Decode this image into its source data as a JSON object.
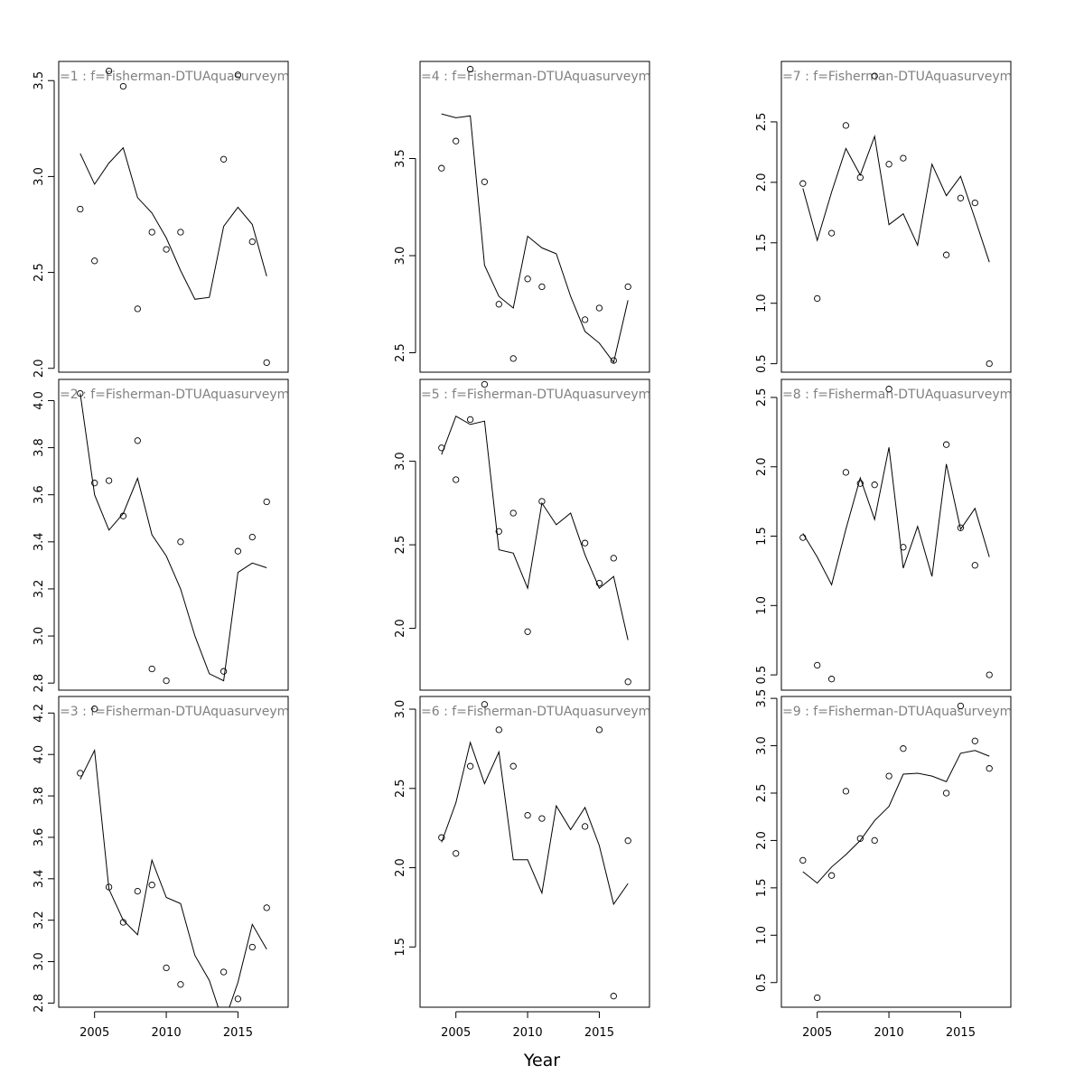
{
  "figure": {
    "xlabel": "Year"
  },
  "chart_data": [
    {
      "type": "scatter",
      "title": "=1 : f=Fisherman-DTUAquasurveyme",
      "xlim": [
        2002.5,
        2018.5
      ],
      "ylim": [
        1.98,
        3.6
      ],
      "xticks": [],
      "yticks": [
        "2.0",
        "2.5",
        "3.0",
        "3.5"
      ],
      "points": {
        "x": [
          2004,
          2005,
          2006,
          2007,
          2008,
          2009,
          2010,
          2011,
          2014,
          2015,
          2016,
          2017
        ],
        "y": [
          2.83,
          2.56,
          3.55,
          3.47,
          2.31,
          2.71,
          2.62,
          2.71,
          3.09,
          3.53,
          2.66,
          2.03
        ]
      },
      "line": {
        "x": [
          2004,
          2005,
          2006,
          2007,
          2008,
          2009,
          2010,
          2011,
          2012,
          2013,
          2014,
          2015,
          2016,
          2017
        ],
        "y": [
          3.12,
          2.96,
          3.07,
          3.15,
          2.89,
          2.81,
          2.68,
          2.51,
          2.36,
          2.37,
          2.74,
          2.84,
          2.75,
          2.48
        ]
      }
    },
    {
      "type": "scatter",
      "title": "=2 : f=Fisherman-DTUAquasurveyme",
      "xlim": [
        2002.5,
        2018.5
      ],
      "ylim": [
        2.77,
        4.09
      ],
      "xticks": [],
      "yticks": [
        "2.8",
        "3.0",
        "3.2",
        "3.4",
        "3.6",
        "3.8",
        "4.0"
      ],
      "points": {
        "x": [
          2004,
          2005,
          2006,
          2007,
          2008,
          2009,
          2010,
          2011,
          2014,
          2015,
          2016,
          2017
        ],
        "y": [
          4.03,
          3.65,
          3.66,
          3.51,
          3.83,
          2.86,
          2.81,
          3.4,
          2.85,
          3.36,
          3.42,
          3.57
        ]
      },
      "line": {
        "x": [
          2004,
          2005,
          2006,
          2007,
          2008,
          2009,
          2010,
          2011,
          2012,
          2013,
          2014,
          2015,
          2016,
          2017
        ],
        "y": [
          4.03,
          3.6,
          3.45,
          3.52,
          3.67,
          3.43,
          3.34,
          3.2,
          3.0,
          2.84,
          2.81,
          3.27,
          3.31,
          3.29
        ]
      }
    },
    {
      "type": "scatter",
      "title": "=3 : f=Fisherman-DTUAquasurveyme",
      "xlim": [
        2002.5,
        2018.5
      ],
      "ylim": [
        2.78,
        4.28
      ],
      "xticks": [
        "2005",
        "2010",
        "2015"
      ],
      "yticks": [
        "2.8",
        "3.0",
        "3.2",
        "3.4",
        "3.6",
        "3.8",
        "4.0",
        "4.2"
      ],
      "points": {
        "x": [
          2004,
          2005,
          2006,
          2007,
          2008,
          2009,
          2010,
          2011,
          2014,
          2015,
          2016,
          2017
        ],
        "y": [
          3.91,
          4.22,
          3.36,
          3.19,
          3.34,
          3.37,
          2.97,
          2.89,
          2.95,
          2.82,
          3.07,
          3.26
        ]
      },
      "line": {
        "x": [
          2004,
          2005,
          2006,
          2007,
          2008,
          2009,
          2010,
          2011,
          2012,
          2013,
          2014,
          2015,
          2016,
          2017
        ],
        "y": [
          3.88,
          4.02,
          3.35,
          3.2,
          3.13,
          3.49,
          3.31,
          3.28,
          3.03,
          2.91,
          2.7,
          2.9,
          3.18,
          3.06
        ]
      }
    },
    {
      "type": "scatter",
      "title": "=4 : f=Fisherman-DTUAquasurveyme",
      "xlim": [
        2002.5,
        2018.5
      ],
      "ylim": [
        2.4,
        4.0
      ],
      "xticks": [],
      "yticks": [
        "2.5",
        "3.0",
        "3.5"
      ],
      "points": {
        "x": [
          2004,
          2005,
          2006,
          2007,
          2008,
          2009,
          2010,
          2011,
          2014,
          2015,
          2016,
          2017
        ],
        "y": [
          3.45,
          3.59,
          3.96,
          3.38,
          2.75,
          2.47,
          2.88,
          2.84,
          2.67,
          2.73,
          2.46,
          2.84
        ]
      },
      "line": {
        "x": [
          2004,
          2005,
          2006,
          2007,
          2008,
          2009,
          2010,
          2011,
          2012,
          2013,
          2014,
          2015,
          2016,
          2017
        ],
        "y": [
          3.73,
          3.71,
          3.72,
          2.95,
          2.79,
          2.73,
          3.1,
          3.04,
          3.01,
          2.79,
          2.61,
          2.55,
          2.45,
          2.77
        ]
      }
    },
    {
      "type": "scatter",
      "title": "=5 : f=Fisherman-DTUAquasurveyme",
      "xlim": [
        2002.5,
        2018.5
      ],
      "ylim": [
        1.63,
        3.49
      ],
      "xticks": [],
      "yticks": [
        "2.0",
        "2.5",
        "3.0"
      ],
      "points": {
        "x": [
          2004,
          2005,
          2006,
          2007,
          2008,
          2009,
          2010,
          2011,
          2014,
          2015,
          2016,
          2017
        ],
        "y": [
          3.08,
          2.89,
          3.25,
          3.46,
          2.58,
          2.69,
          1.98,
          2.76,
          2.51,
          2.27,
          2.42,
          1.68
        ]
      },
      "line": {
        "x": [
          2004,
          2005,
          2006,
          2007,
          2008,
          2009,
          2010,
          2011,
          2012,
          2013,
          2014,
          2015,
          2016,
          2017
        ],
        "y": [
          3.04,
          3.27,
          3.22,
          3.24,
          2.47,
          2.45,
          2.24,
          2.75,
          2.62,
          2.69,
          2.44,
          2.24,
          2.31,
          1.93
        ]
      }
    },
    {
      "type": "scatter",
      "title": "=6 : f=Fisherman-DTUAquasurveyme",
      "xlim": [
        2002.5,
        2018.5
      ],
      "ylim": [
        1.12,
        3.08
      ],
      "xticks": [
        "2005",
        "2010",
        "2015"
      ],
      "yticks": [
        "1.5",
        "2.0",
        "2.5",
        "3.0"
      ],
      "points": {
        "x": [
          2004,
          2005,
          2006,
          2007,
          2008,
          2009,
          2010,
          2011,
          2014,
          2015,
          2016,
          2017
        ],
        "y": [
          2.19,
          2.09,
          2.64,
          3.03,
          2.87,
          2.64,
          2.33,
          2.31,
          2.26,
          2.87,
          1.19,
          2.17
        ]
      },
      "line": {
        "x": [
          2004,
          2005,
          2006,
          2007,
          2008,
          2009,
          2010,
          2011,
          2012,
          2013,
          2014,
          2015,
          2016,
          2017
        ],
        "y": [
          2.16,
          2.41,
          2.79,
          2.53,
          2.73,
          2.05,
          2.05,
          1.84,
          2.39,
          2.24,
          2.38,
          2.14,
          1.77,
          1.9
        ]
      }
    },
    {
      "type": "scatter",
      "title": "=7 : f=Fisherman-DTUAquasurveyme",
      "xlim": [
        2002.5,
        2018.5
      ],
      "ylim": [
        0.43,
        3.0
      ],
      "xticks": [],
      "yticks": [
        "0.5",
        "1.0",
        "1.5",
        "2.0",
        "2.5"
      ],
      "points": {
        "x": [
          2004,
          2005,
          2006,
          2007,
          2008,
          2009,
          2010,
          2011,
          2014,
          2015,
          2016,
          2017
        ],
        "y": [
          1.99,
          1.04,
          1.58,
          2.47,
          2.04,
          2.88,
          2.15,
          2.2,
          1.4,
          1.87,
          1.83,
          0.5
        ]
      },
      "line": {
        "x": [
          2004,
          2005,
          2006,
          2007,
          2008,
          2009,
          2010,
          2011,
          2012,
          2013,
          2014,
          2015,
          2016,
          2017
        ],
        "y": [
          1.95,
          1.52,
          1.92,
          2.28,
          2.06,
          2.38,
          1.65,
          1.74,
          1.48,
          2.15,
          1.89,
          2.05,
          1.7,
          1.34
        ]
      }
    },
    {
      "type": "scatter",
      "title": "=8 : f=Fisherman-DTUAquasurveyme",
      "xlim": [
        2002.5,
        2018.5
      ],
      "ylim": [
        0.39,
        2.63
      ],
      "xticks": [],
      "yticks": [
        "0.5",
        "1.0",
        "1.5",
        "2.0",
        "2.5"
      ],
      "points": {
        "x": [
          2004,
          2005,
          2006,
          2007,
          2008,
          2009,
          2010,
          2011,
          2014,
          2015,
          2016,
          2017
        ],
        "y": [
          1.49,
          0.57,
          0.47,
          1.96,
          1.88,
          1.87,
          2.56,
          1.42,
          2.16,
          1.56,
          1.29,
          0.5
        ]
      },
      "line": {
        "x": [
          2004,
          2005,
          2006,
          2007,
          2008,
          2009,
          2010,
          2011,
          2012,
          2013,
          2014,
          2015,
          2016,
          2017
        ],
        "y": [
          1.52,
          1.35,
          1.15,
          1.55,
          1.92,
          1.62,
          2.14,
          1.27,
          1.57,
          1.21,
          2.02,
          1.55,
          1.7,
          1.35
        ]
      }
    },
    {
      "type": "scatter",
      "title": "=9 : f=Fisherman-DTUAquasurveyme",
      "xlim": [
        2002.5,
        2018.5
      ],
      "ylim": [
        0.24,
        3.52
      ],
      "xticks": [
        "2005",
        "2010",
        "2015"
      ],
      "yticks": [
        "0.5",
        "1.0",
        "1.5",
        "2.0",
        "2.5",
        "3.0",
        "3.5"
      ],
      "points": {
        "x": [
          2004,
          2005,
          2006,
          2007,
          2008,
          2009,
          2010,
          2011,
          2014,
          2015,
          2016,
          2017
        ],
        "y": [
          1.79,
          0.34,
          1.63,
          2.52,
          2.02,
          2.0,
          2.68,
          2.97,
          2.5,
          3.42,
          3.05,
          2.76
        ]
      },
      "line": {
        "x": [
          2004,
          2005,
          2006,
          2007,
          2008,
          2009,
          2010,
          2011,
          2012,
          2013,
          2014,
          2015,
          2016,
          2017
        ],
        "y": [
          1.67,
          1.55,
          1.72,
          1.85,
          2.0,
          2.21,
          2.36,
          2.7,
          2.71,
          2.68,
          2.62,
          2.92,
          2.95,
          2.89
        ]
      }
    }
  ]
}
